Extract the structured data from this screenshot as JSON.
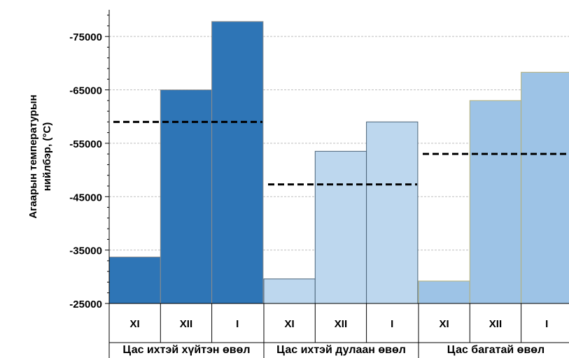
{
  "chart_data": {
    "type": "bar",
    "ylabel_lines": [
      "Агаарын температурын",
      "нийлбэр, (°С)"
    ],
    "ylim": [
      25000,
      80000
    ],
    "yticks": [
      25000,
      35000,
      45000,
      55000,
      65000,
      75000
    ],
    "ytick_labels": [
      "-25000",
      "-35000",
      "-45000",
      "-55000",
      "-65000",
      "-75000"
    ],
    "grid": true,
    "groups": [
      {
        "name": "Цас ихтэй хүйтэн өвөл",
        "categories": [
          "XI",
          "XII",
          "I"
        ],
        "values": [
          33700,
          65000,
          77800
        ],
        "mean_line": 59000,
        "color": "#2e75b6",
        "border": "#8c8c8c"
      },
      {
        "name": "Цас ихтэй дулаан өвөл",
        "categories": [
          "XI",
          "XII",
          "I"
        ],
        "values": [
          29600,
          53500,
          59000
        ],
        "mean_line": 47300,
        "color": "#bdd7ee",
        "border": "#4a6378"
      },
      {
        "name": "Цас багатай өвөл",
        "categories": [
          "XI",
          "XII",
          "I"
        ],
        "values": [
          29200,
          63000,
          68300
        ],
        "mean_line": 53000,
        "color": "#9dc3e6",
        "border": "#b5b078"
      }
    ]
  }
}
